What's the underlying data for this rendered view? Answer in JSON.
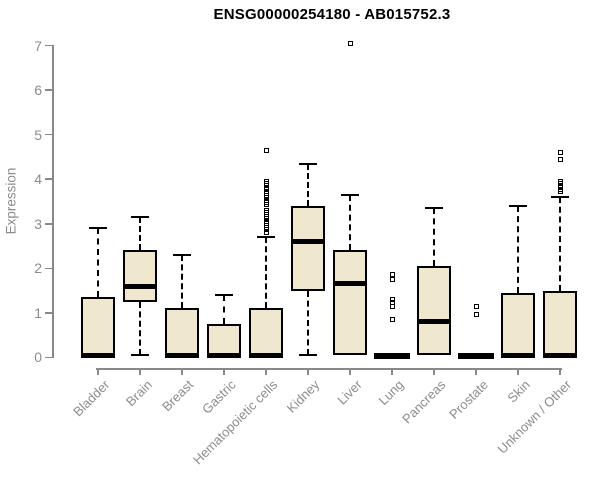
{
  "title": "ENSG00000254180 - AB015752.3",
  "colors": {
    "box_fill": "#efe8cf",
    "box_border": "#000000",
    "axis": "#888888",
    "axis_text": "#8c8c8c",
    "title_text": "#000000"
  },
  "chart_data": {
    "type": "boxplot",
    "title": "ENSG00000254180 - AB015752.3",
    "xlabel": "",
    "ylabel": "Expression",
    "ylim": [
      0,
      7
    ],
    "yticks": [
      0,
      1,
      2,
      3,
      4,
      5,
      6,
      7
    ],
    "grid": false,
    "legend": "none",
    "categories": [
      "Bladder",
      "Brain",
      "Breast",
      "Gastric",
      "Hematopoietic cells",
      "Kidney",
      "Liver",
      "Lung",
      "Pancreas",
      "Prostate",
      "Skin",
      "Unknown / Other"
    ],
    "boxes": [
      {
        "label": "Bladder",
        "low": 0,
        "q1": 0,
        "median": 0.05,
        "q3": 1.35,
        "high": 2.9,
        "outliers": []
      },
      {
        "label": "Brain",
        "low": 0.05,
        "q1": 1.25,
        "median": 1.6,
        "q3": 2.4,
        "high": 3.15,
        "outliers": []
      },
      {
        "label": "Breast",
        "low": 0,
        "q1": 0,
        "median": 0.05,
        "q3": 1.1,
        "high": 2.3,
        "outliers": []
      },
      {
        "label": "Gastric",
        "low": 0,
        "q1": 0,
        "median": 0.05,
        "q3": 0.75,
        "high": 1.4,
        "outliers": []
      },
      {
        "label": "Hematopoietic cells",
        "low": 0,
        "q1": 0,
        "median": 0.05,
        "q3": 1.1,
        "high": 2.7,
        "outliers": [
          4.65,
          3.95,
          3.9,
          3.85,
          3.8,
          3.76,
          3.72,
          3.68,
          3.63,
          3.58,
          3.53,
          3.48,
          3.44,
          3.3,
          3.26,
          3.21,
          3.16,
          3.11,
          3.06,
          3.01,
          2.96,
          2.91,
          2.86,
          2.81
        ]
      },
      {
        "label": "Kidney",
        "low": 0.05,
        "q1": 1.5,
        "median": 2.6,
        "q3": 3.4,
        "high": 4.35,
        "outliers": []
      },
      {
        "label": "Liver",
        "low": 0.05,
        "q1": 0.05,
        "median": 1.65,
        "q3": 2.4,
        "high": 3.65,
        "outliers": [
          7.05
        ]
      },
      {
        "label": "Lung",
        "low": 0,
        "q1": 0,
        "median": 0.03,
        "q3": 0.05,
        "high": 0.05,
        "outliers": [
          1.86,
          1.74,
          1.3,
          1.22,
          1.13,
          0.85
        ]
      },
      {
        "label": "Pancreas",
        "low": 0.05,
        "q1": 0.05,
        "median": 0.8,
        "q3": 2.05,
        "high": 3.35,
        "outliers": []
      },
      {
        "label": "Prostate",
        "low": 0,
        "q1": 0,
        "median": 0.03,
        "q3": 0.05,
        "high": 0.05,
        "outliers": [
          1.15,
          0.97
        ]
      },
      {
        "label": "Skin",
        "low": 0,
        "q1": 0,
        "median": 0.05,
        "q3": 1.45,
        "high": 3.4,
        "outliers": []
      },
      {
        "label": "Unknown / Other",
        "low": 0,
        "q1": 0,
        "median": 0.05,
        "q3": 1.5,
        "high": 3.6,
        "outliers": [
          4.6,
          4.44,
          3.95,
          3.9,
          3.84,
          3.78,
          3.72
        ]
      }
    ]
  }
}
